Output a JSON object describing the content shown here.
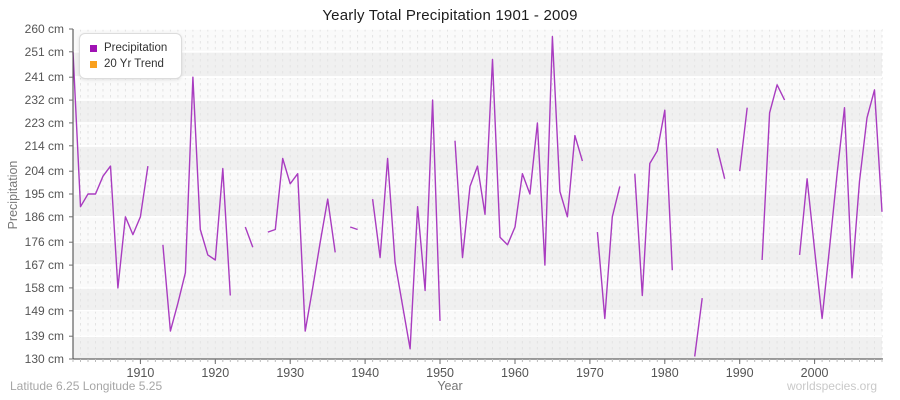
{
  "title": "Yearly Total Precipitation 1901 - 2009",
  "axes": {
    "x_label": "Year",
    "y_label": "Precipitation",
    "y_tick_suffix": "cm"
  },
  "legend": [
    {
      "label": "Precipitation",
      "color": "#A012B4"
    },
    {
      "label": "20 Yr Trend",
      "color": "#F9A01E"
    }
  ],
  "footer": {
    "left": "Latitude 6.25 Longitude 5.25",
    "right": "worldspecies.org"
  },
  "colors": {
    "line": "#A93CC0",
    "axis": "#3f3f3f",
    "tick": "#6e6e6e",
    "minor_tick": "#bbbbbb",
    "grid_v": "#e3e3e3",
    "grid_h": "#ffffff",
    "band_light": "#fafafa",
    "band_dark": "#f0f0f0"
  },
  "chart_data": {
    "type": "line",
    "title": "Yearly Total Precipitation 1901 - 2009",
    "xlabel": "Year",
    "ylabel": "Precipitation",
    "unit": "cm",
    "x_start": 1901,
    "x_end": 2009,
    "ylim": [
      130,
      260
    ],
    "x_ticks": [
      1910,
      1920,
      1930,
      1940,
      1950,
      1960,
      1970,
      1980,
      1990,
      2000
    ],
    "y_ticks": [
      130,
      139,
      149,
      158,
      167,
      176,
      186,
      195,
      204,
      214,
      223,
      232,
      241,
      251,
      260
    ],
    "grid": true,
    "legend_position": "top-left",
    "missing_values_shown_as_gaps": true,
    "series": [
      {
        "name": "Precipitation",
        "years": [
          1901,
          1902,
          1903,
          1904,
          1905,
          1906,
          1907,
          1908,
          1909,
          1910,
          1911,
          1912,
          1913,
          1914,
          1915,
          1916,
          1917,
          1918,
          1919,
          1920,
          1921,
          1922,
          1923,
          1924,
          1925,
          1926,
          1927,
          1928,
          1929,
          1930,
          1931,
          1932,
          1933,
          1934,
          1935,
          1936,
          1937,
          1938,
          1939,
          1940,
          1941,
          1942,
          1943,
          1944,
          1945,
          1946,
          1947,
          1948,
          1949,
          1950,
          1951,
          1952,
          1953,
          1954,
          1955,
          1956,
          1957,
          1958,
          1959,
          1960,
          1961,
          1962,
          1963,
          1964,
          1965,
          1966,
          1967,
          1968,
          1969,
          1970,
          1971,
          1972,
          1973,
          1974,
          1975,
          1976,
          1977,
          1978,
          1979,
          1980,
          1981,
          1982,
          1983,
          1984,
          1985,
          1986,
          1987,
          1988,
          1989,
          1990,
          1991,
          1992,
          1993,
          1994,
          1995,
          1996,
          1997,
          1998,
          1999,
          2000,
          2001,
          2002,
          2003,
          2004,
          2005,
          2006,
          2007,
          2008,
          2009
        ],
        "values": [
          251,
          190,
          195,
          195,
          202,
          206,
          158,
          186,
          179,
          186,
          206,
          null,
          175,
          141,
          152,
          164,
          241,
          181,
          171,
          169,
          205,
          155,
          null,
          182,
          174,
          null,
          180,
          181,
          209,
          199,
          203,
          141,
          158,
          176,
          193,
          172,
          null,
          182,
          181,
          null,
          193,
          170,
          209,
          168,
          151,
          134,
          190,
          157,
          232,
          145,
          null,
          216,
          170,
          198,
          206,
          187,
          248,
          178,
          175,
          182,
          203,
          195,
          223,
          167,
          257,
          196,
          186,
          218,
          208,
          null,
          180,
          146,
          186,
          198,
          null,
          203,
          155,
          207,
          212,
          228,
          165,
          null,
          null,
          131,
          154,
          null,
          213,
          201,
          null,
          204,
          229,
          null,
          169,
          227,
          238,
          232,
          null,
          171,
          201,
          173,
          146,
          174,
          203,
          229,
          162,
          200,
          225,
          236,
          188
        ]
      }
    ]
  }
}
